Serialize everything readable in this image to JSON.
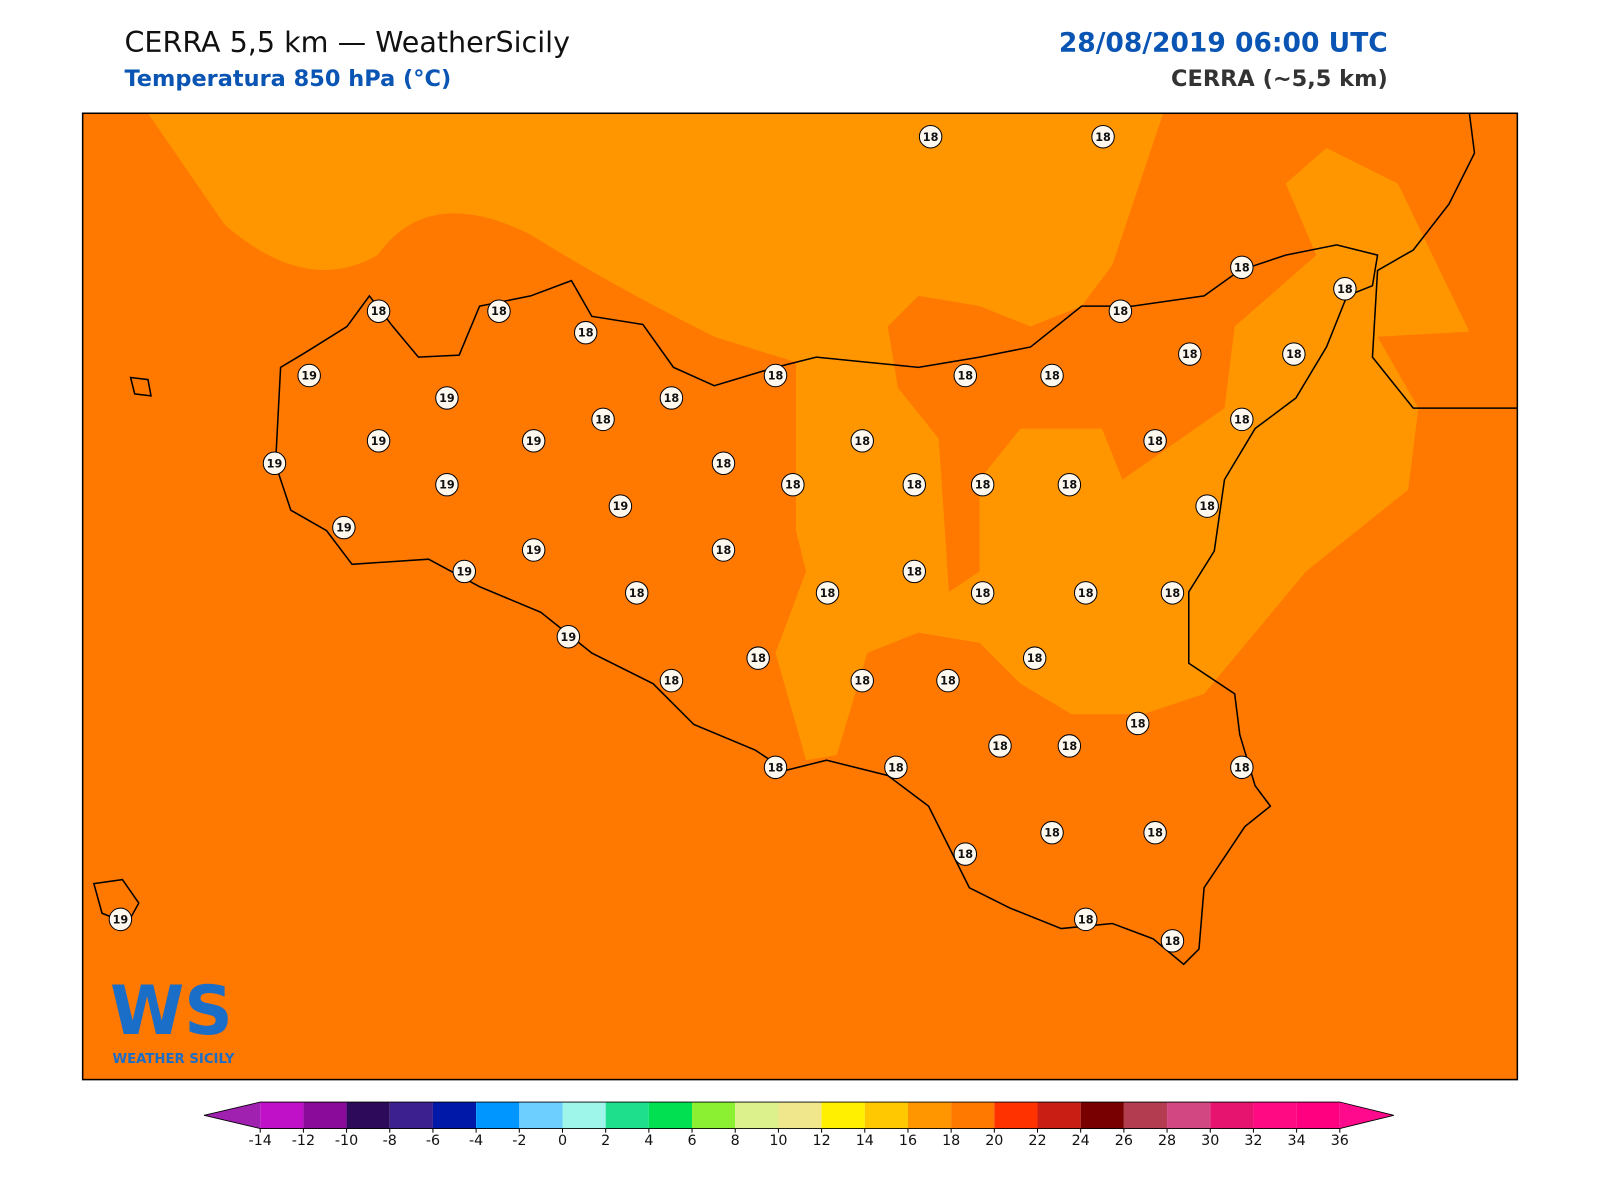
{
  "header": {
    "title": "CERRA 5,5 km — WeatherSicily",
    "subtitle": "Temperatura 850 hPa (°C)",
    "datetime": "28/08/2019 06:00 UTC",
    "model": "CERRA (~5,5 km)"
  },
  "stations": [
    18,
    18,
    18,
    18,
    18,
    18,
    18,
    18,
    19,
    18,
    18,
    18,
    18,
    18,
    19,
    18,
    18,
    18,
    19,
    19,
    18,
    18,
    19,
    18,
    19,
    18,
    18,
    18,
    18,
    19,
    18,
    19,
    19,
    18,
    19,
    18,
    18,
    18,
    18,
    18,
    18,
    19,
    18,
    18,
    18,
    18,
    18,
    18,
    18,
    18,
    18,
    18,
    18,
    18,
    18,
    18,
    18,
    18,
    19
  ],
  "colorbar": {
    "ticks": [
      -14,
      -12,
      -10,
      -8,
      -6,
      -4,
      -2,
      0,
      2,
      4,
      6,
      8,
      10,
      12,
      14,
      16,
      18,
      20,
      22,
      24,
      26,
      28,
      30,
      32,
      34,
      36
    ],
    "colors": [
      "#c010c8",
      "#8a0a9a",
      "#2d0a5a",
      "#3c2090",
      "#0018a8",
      "#0096ff",
      "#6ccfff",
      "#9ef5ea",
      "#1ee08c",
      "#00e050",
      "#8cf032",
      "#dcf08c",
      "#f0e68c",
      "#fff000",
      "#ffc800",
      "#ff9600",
      "#ff7800",
      "#ff3200",
      "#c81e14",
      "#780000",
      "#b43c50",
      "#d24682",
      "#e6146e",
      "#ff0a82",
      "#ff0080"
    ],
    "under_color": "#a020b0",
    "over_color": "#ff0a8c"
  },
  "logo": {
    "text": "WS",
    "caption": "WEATHER SICILY"
  }
}
